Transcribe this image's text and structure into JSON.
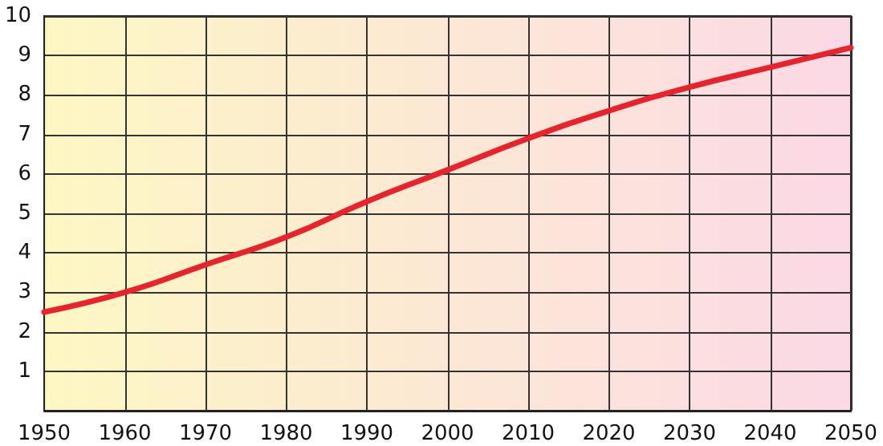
{
  "chart_data": {
    "type": "line",
    "x": [
      1950,
      1960,
      1970,
      1980,
      1990,
      2000,
      2010,
      2020,
      2030,
      2040,
      2050
    ],
    "series": [
      {
        "color": "#e8232b",
        "values": [
          2.5,
          3.0,
          3.7,
          4.4,
          5.3,
          6.1,
          6.9,
          7.6,
          8.2,
          8.7,
          9.2
        ]
      }
    ],
    "xlim": [
      1950,
      2050
    ],
    "xticks": [
      1950,
      1960,
      1970,
      1980,
      1990,
      2000,
      2010,
      2020,
      2030,
      2040,
      2050
    ],
    "ylim": [
      0,
      10
    ],
    "yticks": [
      {
        "value": 0,
        "label": null
      },
      1,
      2,
      3,
      4,
      5,
      6,
      7,
      8,
      9,
      10
    ],
    "grid": true,
    "marker": "none",
    "line_style": "solid"
  }
}
